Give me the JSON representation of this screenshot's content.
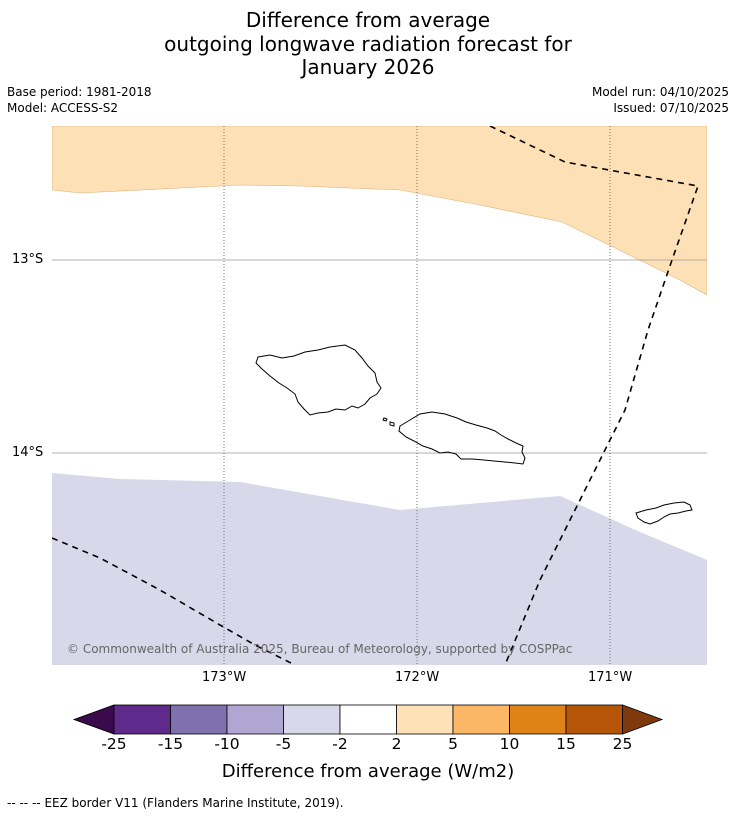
{
  "title": {
    "line1": "Difference from average",
    "line2": "outgoing longwave radiation forecast for",
    "line3": "January 2026"
  },
  "meta": {
    "base_period": "Base period: 1981-2018",
    "model": "Model: ACCESS-S2",
    "model_run": "Model run: 04/10/2025",
    "issued": "Issued: 07/10/2025"
  },
  "map": {
    "lat_labels": [
      "13°S",
      "14°S"
    ],
    "lon_labels": [
      "173°W",
      "172°W",
      "171°W"
    ],
    "copyright": "© Commonwealth of Australia 2025, Bureau of Meteorology, supported by COSPPac"
  },
  "colorbar": {
    "title": "Difference from average (W/m2)",
    "tick_labels": [
      "-25",
      "-15",
      "-10",
      "-5",
      "-2",
      "2",
      "5",
      "10",
      "15",
      "25"
    ],
    "colors": {
      "below_min": "#3b0a4d",
      "bins": [
        "#5e2a8c",
        "#8070b0",
        "#b0a6d2",
        "#d8d8ea",
        "#ffffff",
        "#fde0b6",
        "#fbb766",
        "#e08316",
        "#b45606"
      ],
      "above_max": "#7e3a0c"
    }
  },
  "legend": {
    "eez_marker": "--  --  --",
    "eez_text": "EEZ border V11 (Flanders Marine Institute, 2019)."
  }
}
